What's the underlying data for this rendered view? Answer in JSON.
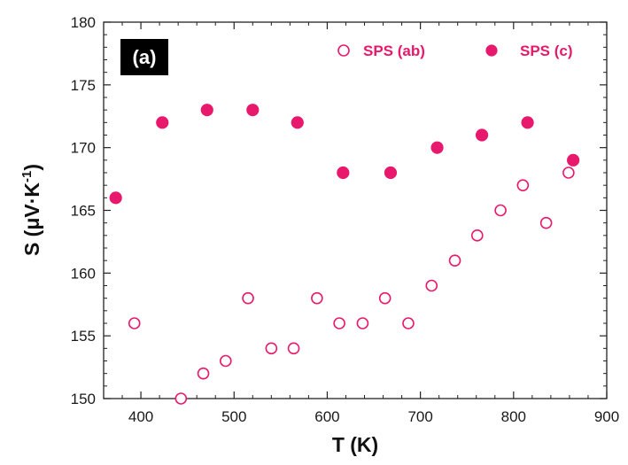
{
  "chart_data": {
    "type": "scatter",
    "panel_label": "(a)",
    "xlabel": "T (K)",
    "ylabel": {
      "main": "S (μV·K",
      "sup": "-1",
      "close": ")"
    },
    "xlim": [
      360,
      900
    ],
    "ylim": [
      150,
      180
    ],
    "x_ticks": [
      400,
      500,
      600,
      700,
      800,
      900
    ],
    "y_ticks": [
      150,
      155,
      160,
      165,
      170,
      175,
      180
    ],
    "legend_position": "top-right",
    "color": "#e8196c",
    "series": [
      {
        "name": "SPS (ab)",
        "marker": "open-circle",
        "x": [
          393,
          443,
          467,
          491,
          515,
          540,
          564,
          589,
          613,
          638,
          662,
          687,
          712,
          737,
          761,
          786,
          810,
          835,
          859
        ],
        "y": [
          156,
          150,
          152,
          153,
          158,
          154,
          154,
          158,
          156,
          156,
          158,
          156,
          159,
          161,
          163,
          165,
          167,
          164,
          168
        ]
      },
      {
        "name": "SPS (c)",
        "marker": "filled-circle",
        "x": [
          373,
          423,
          471,
          520,
          568,
          617,
          668,
          718,
          766,
          815,
          864
        ],
        "y": [
          166,
          172,
          173,
          173,
          172,
          168,
          168,
          170,
          171,
          172,
          169
        ]
      }
    ]
  }
}
